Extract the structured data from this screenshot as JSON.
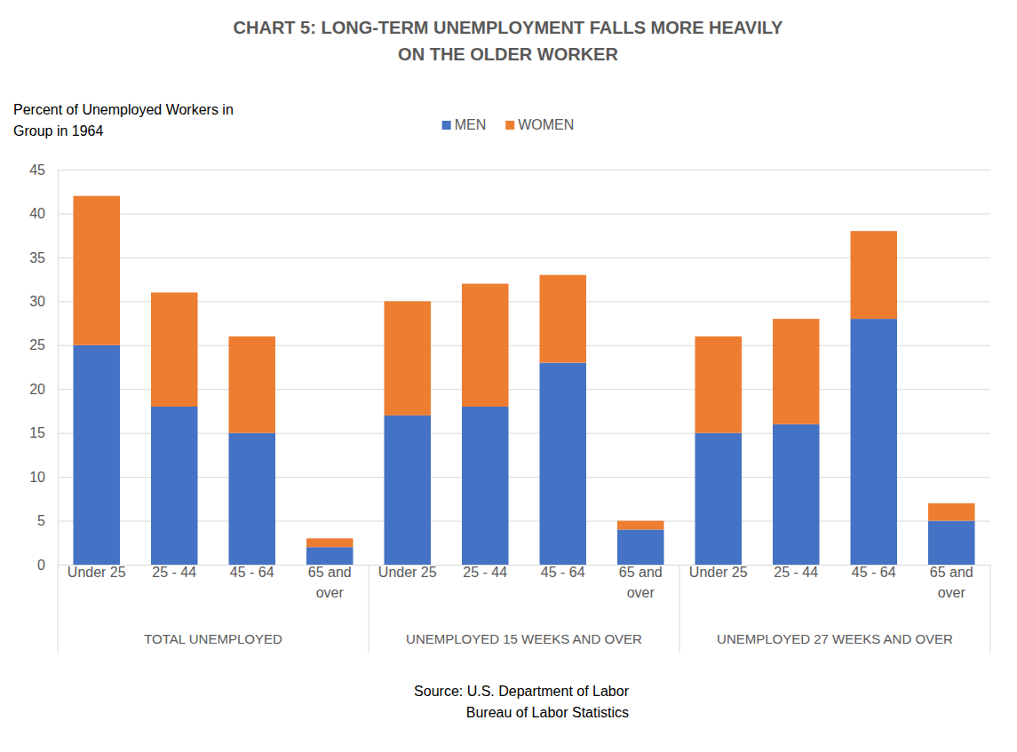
{
  "chart_data": {
    "type": "bar",
    "title": "CHART 5: LONG-TERM UNEMPLOYMENT FALLS MORE HEAVILY\nON THE OLDER WORKER",
    "y_label": "Percent of Unemployed Workers in\nGroup in 1964",
    "categories": [
      "Under 25",
      "25 - 44",
      "45 - 64",
      "65 and\nover",
      "Under 25",
      "25 - 44",
      "45 - 64",
      "65 and\nover",
      "Under 25",
      "25 - 44",
      "45 - 64",
      "65 and\nover"
    ],
    "groups": [
      "TOTAL UNEMPLOYED",
      "UNEMPLOYED 15 WEEKS AND OVER",
      "UNEMPLOYED 27 WEEKS AND OVER"
    ],
    "series": [
      {
        "name": "MEN",
        "color": "#4472c4",
        "values": [
          25,
          18,
          15,
          2,
          17,
          18,
          23,
          4,
          15,
          16,
          28,
          5
        ]
      },
      {
        "name": "WOMEN",
        "color": "#ed7d31",
        "values": [
          17,
          13,
          11,
          1,
          13,
          14,
          10,
          1,
          11,
          12,
          10,
          2
        ]
      }
    ],
    "ylim": [
      0,
      45
    ],
    "yticks": [
      0,
      5,
      10,
      15,
      20,
      25,
      30,
      35,
      40,
      45
    ],
    "grid": true,
    "stacked": true,
    "legend": "top",
    "annotations": [
      "Source: U.S. Department of Labor",
      "Bureau of Labor Statistics"
    ]
  }
}
